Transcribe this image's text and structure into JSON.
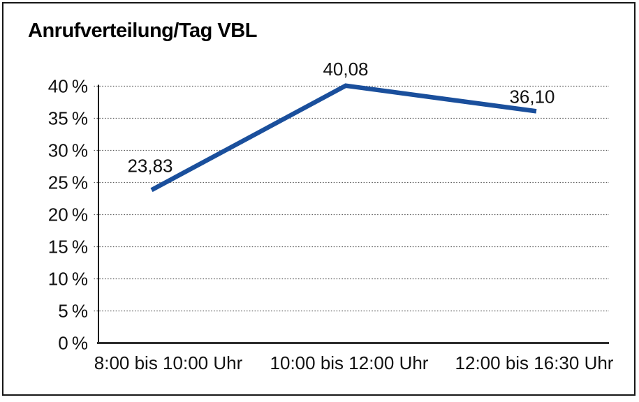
{
  "title": "Anrufverteilung/Tag VBL",
  "colors": {
    "line": "#1a4f9c",
    "grid": "#5f5f5f",
    "y_axis": "#111111",
    "x_axis": "#2e2e2e",
    "frame": "#161616",
    "background": "#ffffff",
    "text": "#111111"
  },
  "chart_data": {
    "type": "line",
    "title": "Anrufverteilung/Tag VBL",
    "categories": [
      "8:00 bis 10:00 Uhr",
      "10:00 bis 12:00 Uhr",
      "12:00 bis 16:30 Uhr"
    ],
    "series": [
      {
        "name": "Anrufverteilung",
        "values": [
          23.83,
          40.08,
          36.1
        ],
        "point_labels": [
          "23,83",
          "40,08",
          "36,10"
        ],
        "color": "#1a4f9c"
      }
    ],
    "xlabel": "",
    "ylabel": "",
    "ylim": [
      0,
      40
    ],
    "ytick_step": 5,
    "ytick_labels": [
      "0 %",
      "5 %",
      "10 %",
      "15 %",
      "20 %",
      "25 %",
      "30 %",
      "35 %",
      "40 %"
    ],
    "grid": "horizontal-dotted",
    "legend": "none",
    "markers": "none"
  }
}
